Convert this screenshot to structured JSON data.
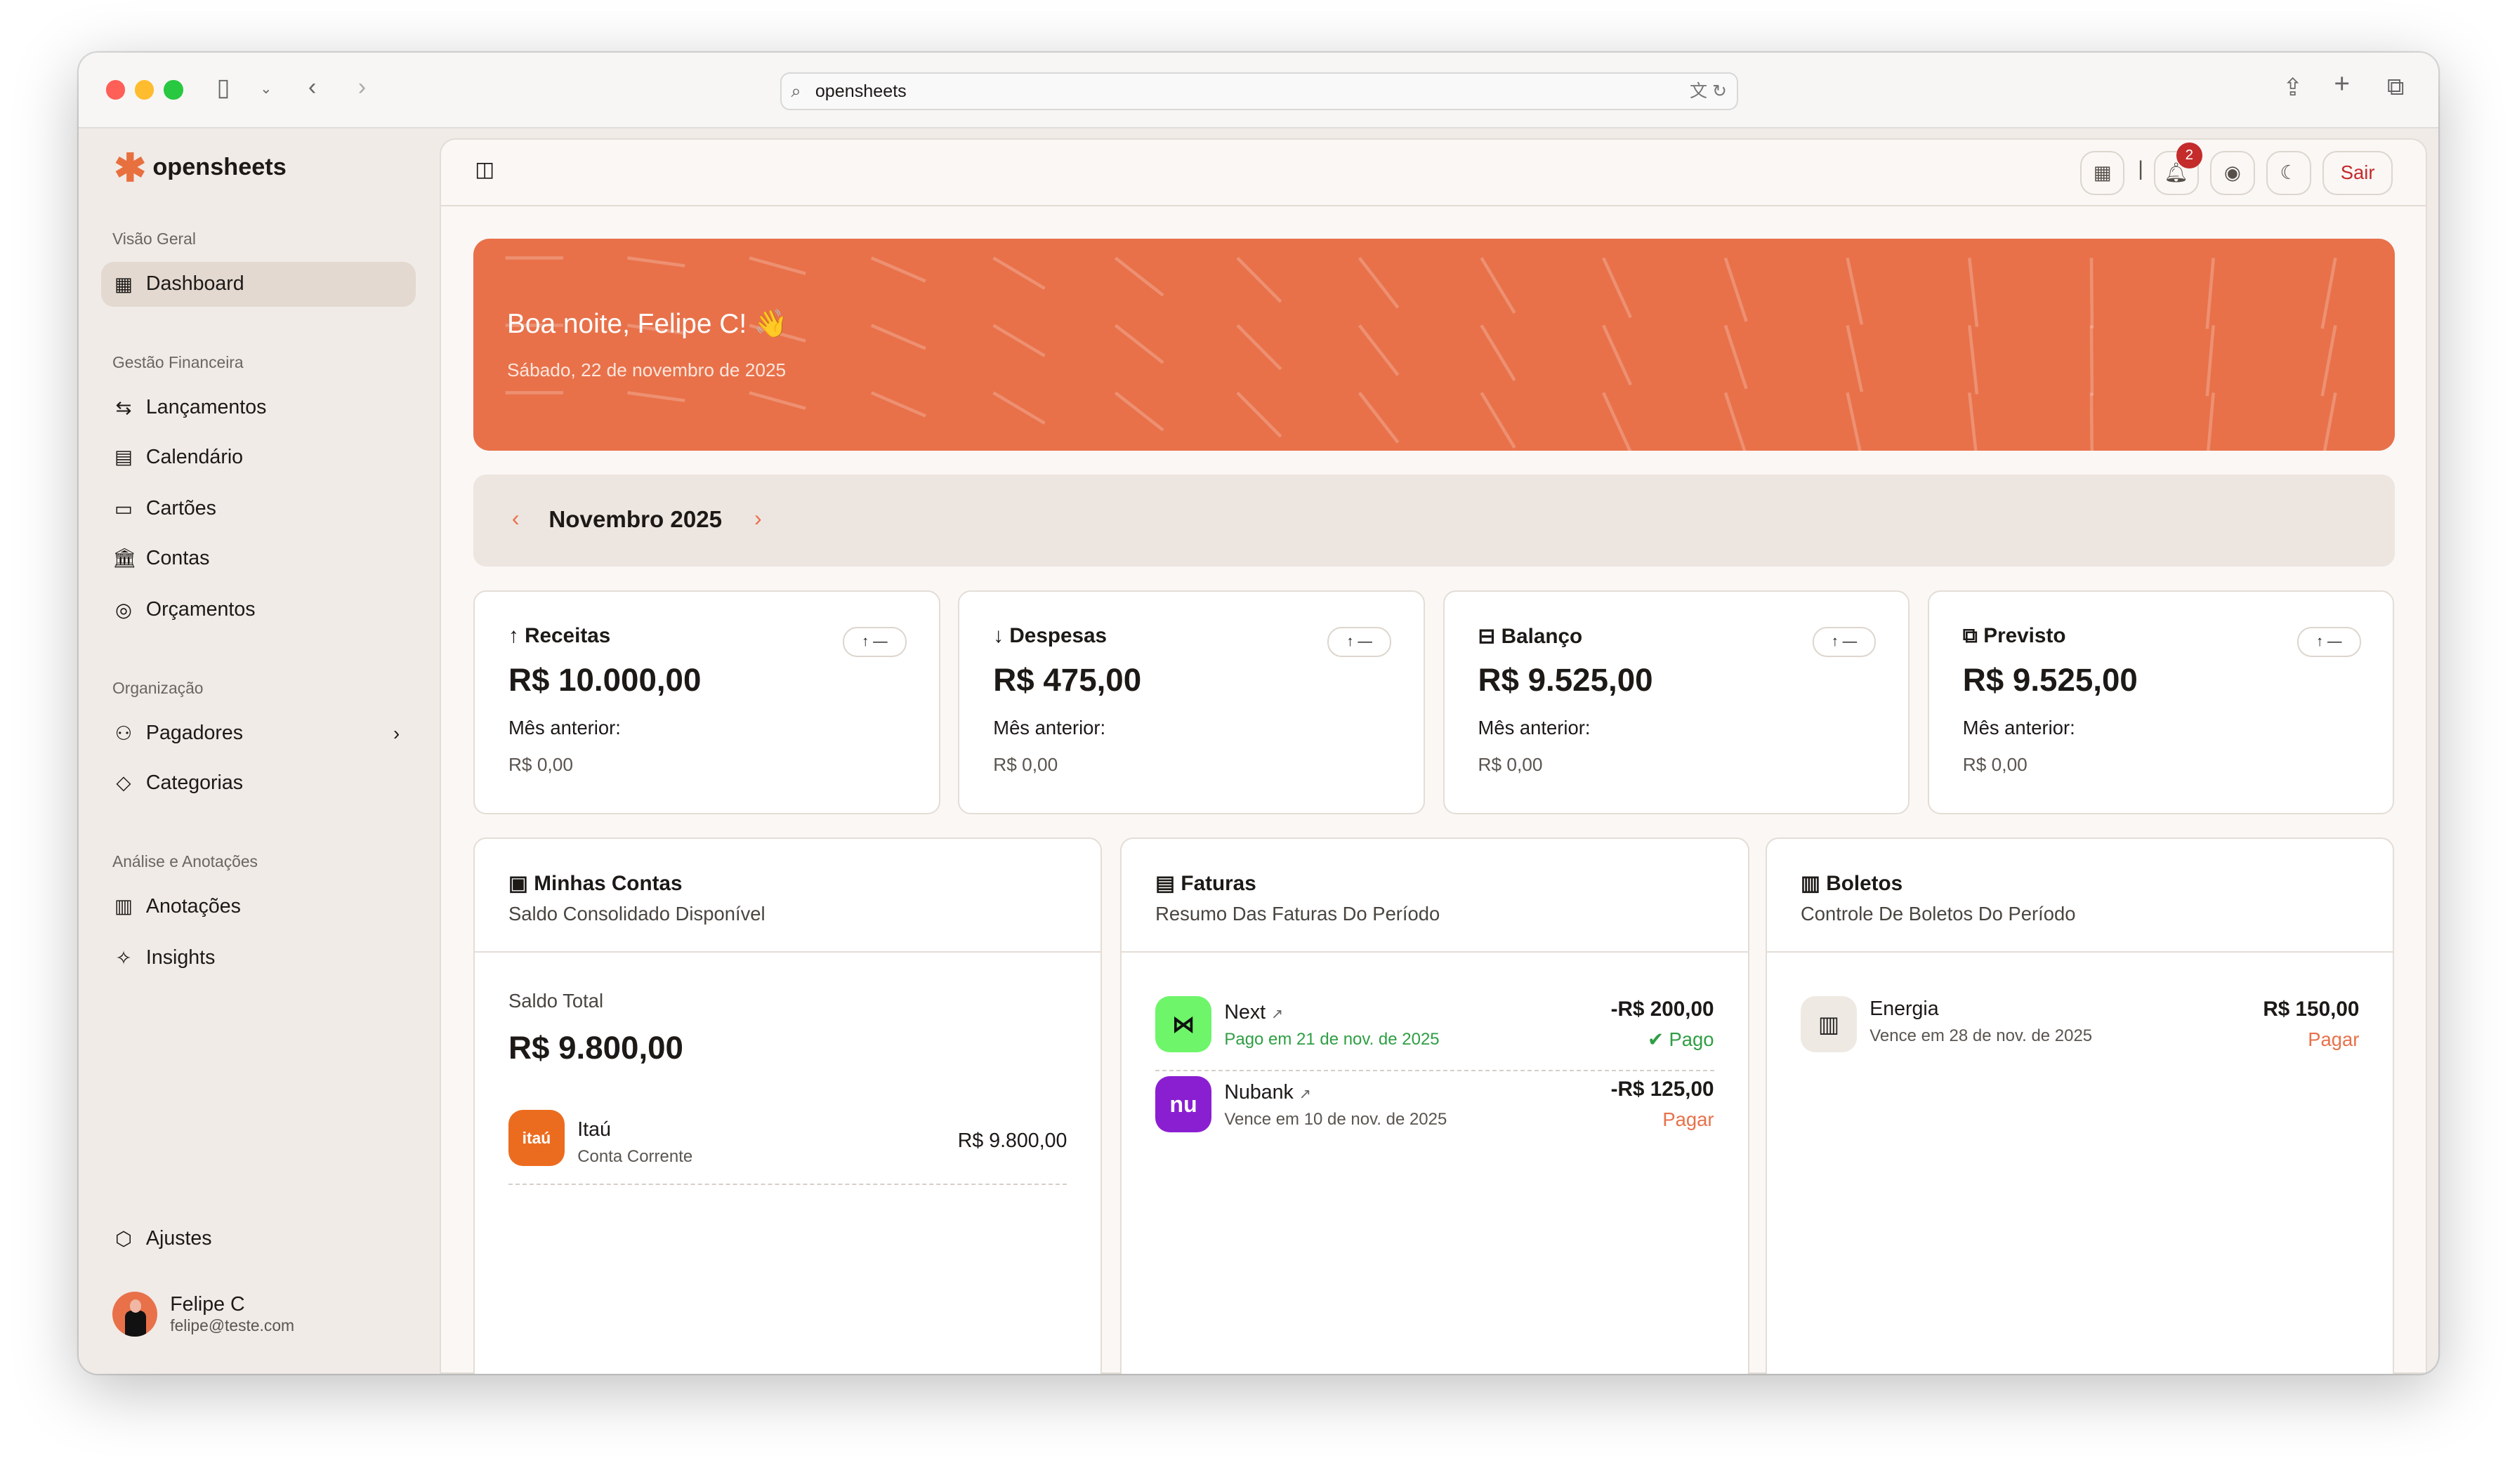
{
  "browser": {
    "url": "opensheets"
  },
  "app": {
    "name": "opensheets"
  },
  "sidebar": {
    "sections": [
      {
        "title": "Visão Geral",
        "items": [
          {
            "label": "Dashboard",
            "icon": "dashboard-icon"
          }
        ]
      },
      {
        "title": "Gestão Financeira",
        "items": [
          {
            "label": "Lançamentos",
            "icon": "arrows-exchange-icon"
          },
          {
            "label": "Calendário",
            "icon": "calendar-icon"
          },
          {
            "label": "Cartões",
            "icon": "credit-card-icon"
          },
          {
            "label": "Contas",
            "icon": "bank-icon"
          },
          {
            "label": "Orçamentos",
            "icon": "chart-circle-icon"
          }
        ]
      },
      {
        "title": "Organização",
        "items": [
          {
            "label": "Pagadores",
            "icon": "users-icon"
          },
          {
            "label": "Categorias",
            "icon": "tag-icon"
          }
        ]
      },
      {
        "title": "Análise e Anotações",
        "items": [
          {
            "label": "Anotações",
            "icon": "clipboard-icon"
          },
          {
            "label": "Insights",
            "icon": "sparkles-icon"
          }
        ]
      }
    ],
    "settings": "Ajustes",
    "user": {
      "name": "Felipe C",
      "email": "felipe@teste.com"
    }
  },
  "header": {
    "notifications": "2",
    "logout": "Sair"
  },
  "banner": {
    "greeting": "Boa noite, Felipe C! 👋",
    "date": "Sábado, 22 de novembro de 2025",
    "color": "#e8714a"
  },
  "period": {
    "label": "Novembro 2025"
  },
  "stats": [
    {
      "title": "Receitas",
      "icon": "arrow-up-icon",
      "value": "R$ 10.000,00",
      "prev_label": "Mês anterior:",
      "prev_value": "R$ 0,00",
      "trend": "↑ —"
    },
    {
      "title": "Despesas",
      "icon": "arrow-down-icon",
      "value": "R$ 475,00",
      "prev_label": "Mês anterior:",
      "prev_value": "R$ 0,00",
      "trend": "↑ —"
    },
    {
      "title": "Balanço",
      "icon": "scale-icon",
      "value": "R$ 9.525,00",
      "prev_label": "Mês anterior:",
      "prev_value": "R$ 0,00",
      "trend": "↑ —"
    },
    {
      "title": "Previsto",
      "icon": "copy-icon",
      "value": "R$ 9.525,00",
      "prev_label": "Mês anterior:",
      "prev_value": "R$ 0,00",
      "trend": "↑ —"
    }
  ],
  "accounts": {
    "title": "Minhas Contas",
    "subtitle": "Saldo Consolidado Disponível",
    "total_label": "Saldo Total",
    "total": "R$ 9.800,00",
    "items": [
      {
        "name": "Itaú",
        "type": "Conta Corrente",
        "amount": "R$ 9.800,00",
        "logo": "itaú"
      }
    ]
  },
  "invoices": {
    "title": "Faturas",
    "subtitle": "Resumo Das Faturas Do Período",
    "items": [
      {
        "name": "Next",
        "detail": "Pago em 21 de nov. de 2025",
        "amount": "-R$ 200,00",
        "status": "Pago",
        "color": "#6ef56a"
      },
      {
        "name": "Nubank",
        "detail": "Vence em 10 de nov. de 2025",
        "amount": "-R$ 125,00",
        "status": "Pagar",
        "logo": "nu",
        "color": "#8a1fd1"
      }
    ]
  },
  "bills": {
    "title": "Boletos",
    "subtitle": "Controle De Boletos Do Período",
    "items": [
      {
        "name": "Energia",
        "detail": "Vence em 28 de nov. de 2025",
        "amount": "R$ 150,00",
        "status": "Pagar"
      }
    ]
  }
}
